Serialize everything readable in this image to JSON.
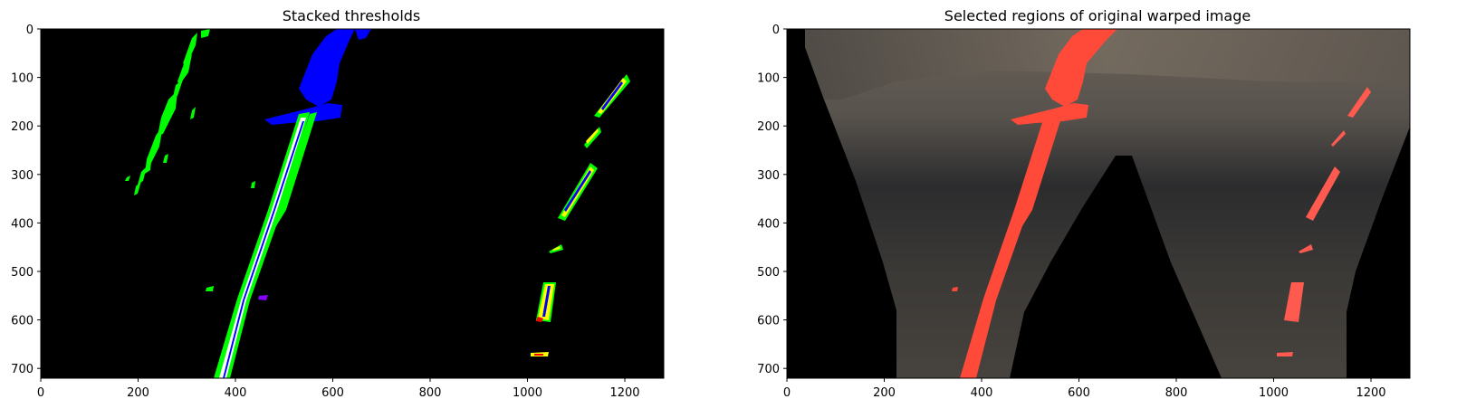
{
  "figure": {
    "panels": [
      {
        "title": "Stacked thresholds",
        "x_ticks": [
          "0",
          "200",
          "400",
          "600",
          "800",
          "1000",
          "1200"
        ],
        "y_ticks": [
          "0",
          "100",
          "200",
          "300",
          "400",
          "500",
          "600",
          "700"
        ]
      },
      {
        "title": "Selected regions of original warped image",
        "x_ticks": [
          "0",
          "200",
          "400",
          "600",
          "800",
          "1000",
          "1200"
        ],
        "y_ticks": [
          "0",
          "100",
          "200",
          "300",
          "400",
          "500",
          "600",
          "700"
        ]
      }
    ]
  },
  "colors": {
    "background": "#000000",
    "green_channel": "#00ff00",
    "blue_channel": "#0000ff",
    "yellow_overlap": "#ffff00",
    "white_overlap": "#ffffff",
    "red_highlight": "#ff4a3a",
    "road_surface": "#3d3a36"
  }
}
